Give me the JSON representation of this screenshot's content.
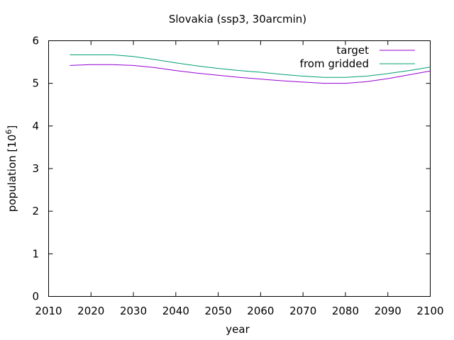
{
  "chart_data": {
    "type": "line",
    "title": "Slovakia (ssp3, 30arcmin)",
    "xlabel": "year",
    "ylabel": "population [10",
    "ylabel_sup": "6",
    "ylabel_close": "]",
    "xlim": [
      2010,
      2100
    ],
    "ylim": [
      0,
      6
    ],
    "xticks": [
      2010,
      2020,
      2030,
      2040,
      2050,
      2060,
      2070,
      2080,
      2090,
      2100
    ],
    "yticks": [
      0,
      1,
      2,
      3,
      4,
      5,
      6
    ],
    "legend_position": "top-right",
    "series": [
      {
        "name": "target",
        "color": "#9400d3",
        "x": [
          2015,
          2020,
          2025,
          2030,
          2035,
          2040,
          2045,
          2050,
          2055,
          2060,
          2065,
          2070,
          2075,
          2080,
          2085,
          2090,
          2095,
          2100
        ],
        "y": [
          5.42,
          5.44,
          5.44,
          5.42,
          5.37,
          5.3,
          5.24,
          5.19,
          5.14,
          5.1,
          5.06,
          5.03,
          5.0,
          5.0,
          5.04,
          5.11,
          5.2,
          5.29
        ]
      },
      {
        "name": "from gridded",
        "color": "#009e73",
        "x": [
          2015,
          2020,
          2025,
          2030,
          2035,
          2040,
          2045,
          2050,
          2055,
          2060,
          2065,
          2070,
          2075,
          2080,
          2085,
          2090,
          2095,
          2100
        ],
        "y": [
          5.67,
          5.67,
          5.67,
          5.63,
          5.56,
          5.48,
          5.41,
          5.35,
          5.3,
          5.26,
          5.21,
          5.17,
          5.14,
          5.14,
          5.17,
          5.23,
          5.3,
          5.38
        ]
      }
    ]
  }
}
